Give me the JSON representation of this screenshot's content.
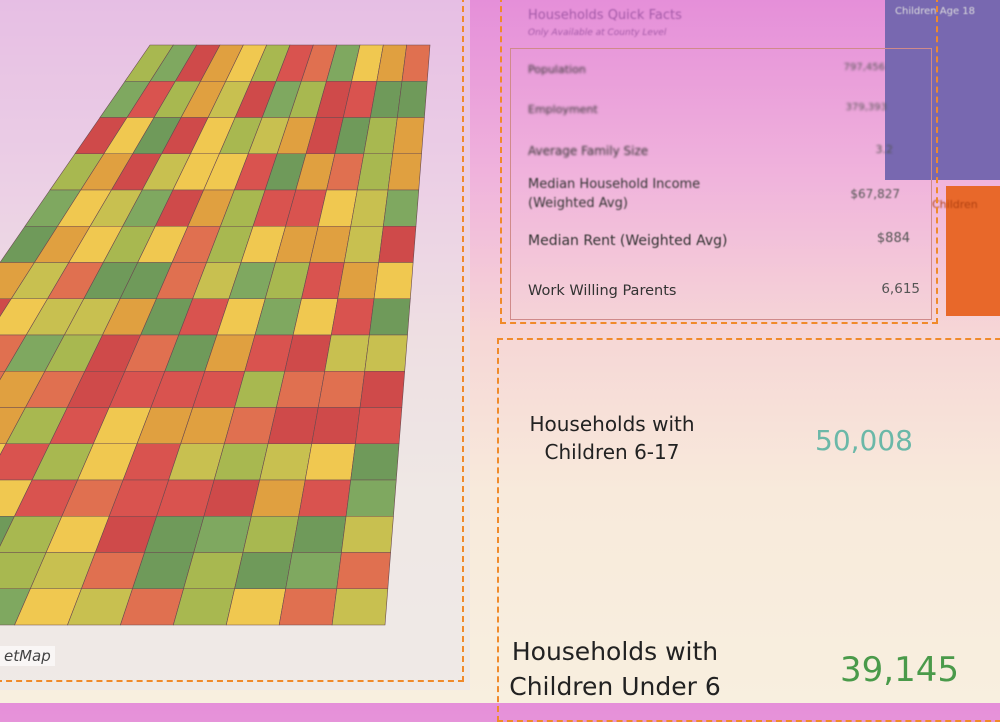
{
  "map_panel": {
    "attribution": "etMap"
  },
  "quick_facts": {
    "title": "Households Quick Facts",
    "subtitle": "Only Available at County Level",
    "rows": [
      {
        "label": "Population",
        "value": "797,456"
      },
      {
        "label": "Employment",
        "value": "379,393"
      },
      {
        "label": "Average Family Size",
        "value": "3.2"
      },
      {
        "label": "Median Household Income (Weighted Avg)",
        "value": "$67,827"
      },
      {
        "label": "Median Rent (Weighted Avg)",
        "value": "$884"
      },
      {
        "label": "Work Willing Parents",
        "value": "6,615"
      }
    ]
  },
  "side_tiles": [
    "Children Age 18",
    "Children"
  ],
  "kpis": [
    {
      "label": "Households with Children 6-17",
      "value": "50,008"
    },
    {
      "label": "Households with Children Under 6",
      "value": "39,145"
    }
  ]
}
